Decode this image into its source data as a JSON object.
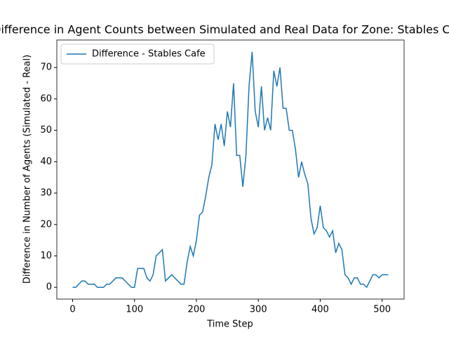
{
  "chart_data": {
    "type": "line",
    "title": "Difference in Agent Counts between Simulated and Real Data for Zone: Stables Cafe",
    "xlabel": "Time Step",
    "ylabel": "Difference in Number of Agents (Simulated - Real)",
    "x": [
      0,
      5,
      10,
      15,
      20,
      25,
      30,
      35,
      40,
      45,
      50,
      55,
      60,
      65,
      70,
      75,
      80,
      85,
      90,
      95,
      100,
      105,
      110,
      115,
      120,
      125,
      130,
      135,
      140,
      145,
      150,
      155,
      160,
      165,
      170,
      175,
      180,
      185,
      190,
      195,
      200,
      205,
      210,
      215,
      220,
      225,
      230,
      235,
      240,
      245,
      250,
      255,
      260,
      265,
      270,
      275,
      280,
      285,
      290,
      295,
      300,
      305,
      310,
      315,
      320,
      325,
      330,
      335,
      340,
      345,
      350,
      355,
      360,
      365,
      370,
      375,
      380,
      385,
      390,
      395,
      400,
      405,
      410,
      415,
      420,
      425,
      430,
      435,
      440,
      445,
      450,
      455,
      460,
      465,
      470,
      475,
      480,
      485,
      490,
      495,
      500,
      505,
      510
    ],
    "series": [
      {
        "name": "Difference - Stables Cafe",
        "color": "#1f77b4",
        "values": [
          0,
          0,
          1,
          2,
          2,
          1,
          1,
          1,
          0,
          0,
          0,
          1,
          1,
          2,
          3,
          3,
          3,
          2,
          1,
          0,
          0,
          6,
          6,
          6,
          3,
          2,
          4,
          10,
          11,
          12,
          2,
          3,
          4,
          3,
          2,
          1,
          1,
          8,
          13,
          10,
          15,
          23,
          24,
          29,
          35,
          39,
          52,
          47,
          52,
          45,
          56,
          51,
          65,
          42,
          42,
          32,
          42,
          64,
          75,
          56,
          51,
          64,
          50,
          54,
          50,
          69,
          64,
          70,
          57,
          57,
          50,
          50,
          44,
          35,
          40,
          36,
          33,
          22,
          17,
          19,
          26,
          19,
          18,
          16,
          18,
          11,
          14,
          12,
          4,
          3,
          1,
          3,
          3,
          1,
          1,
          0,
          2,
          4,
          4,
          3,
          4,
          4,
          4
        ]
      }
    ],
    "xlim": [
      -25.5,
      535.5
    ],
    "xticks": [
      0,
      100,
      200,
      300,
      400,
      500
    ],
    "ylim": [
      -3.75,
      78.75
    ],
    "yticks": [
      0,
      10,
      20,
      30,
      40,
      50,
      60,
      70
    ],
    "grid": false,
    "legend": "upper-left"
  }
}
